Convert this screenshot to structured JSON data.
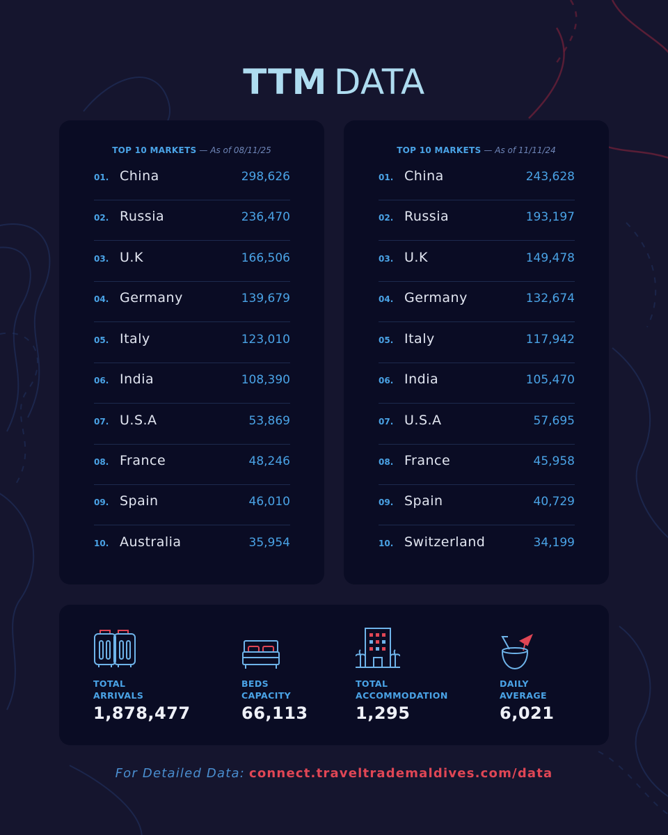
{
  "title": {
    "bold": "TTM",
    "light": "DATA"
  },
  "panels": [
    {
      "heading": "TOP 10 MARKETS",
      "subheading": "— As of 08/11/25",
      "rows": [
        {
          "rank": "01.",
          "country": "China",
          "value": "298,626"
        },
        {
          "rank": "02.",
          "country": "Russia",
          "value": "236,470"
        },
        {
          "rank": "03.",
          "country": "U.K",
          "value": "166,506"
        },
        {
          "rank": "04.",
          "country": "Germany",
          "value": "139,679"
        },
        {
          "rank": "05.",
          "country": "Italy",
          "value": "123,010"
        },
        {
          "rank": "06.",
          "country": "India",
          "value": "108,390"
        },
        {
          "rank": "07.",
          "country": "U.S.A",
          "value": "53,869"
        },
        {
          "rank": "08.",
          "country": "France",
          "value": "48,246"
        },
        {
          "rank": "09.",
          "country": "Spain",
          "value": "46,010"
        },
        {
          "rank": "10.",
          "country": "Australia",
          "value": "35,954"
        }
      ]
    },
    {
      "heading": "TOP 10 MARKETS",
      "subheading": "— As of 11/11/24",
      "rows": [
        {
          "rank": "01.",
          "country": "China",
          "value": "243,628"
        },
        {
          "rank": "02.",
          "country": "Russia",
          "value": "193,197"
        },
        {
          "rank": "03.",
          "country": "U.K",
          "value": "149,478"
        },
        {
          "rank": "04.",
          "country": "Germany",
          "value": "132,674"
        },
        {
          "rank": "05.",
          "country": "Italy",
          "value": "117,942"
        },
        {
          "rank": "06.",
          "country": "India",
          "value": "105,470"
        },
        {
          "rank": "07.",
          "country": "U.S.A",
          "value": "57,695"
        },
        {
          "rank": "08.",
          "country": "France",
          "value": "45,958"
        },
        {
          "rank": "09.",
          "country": "Spain",
          "value": "40,729"
        },
        {
          "rank": "10.",
          "country": "Switzerland",
          "value": "34,199"
        }
      ]
    }
  ],
  "stats": [
    {
      "icon": "luggage-icon",
      "label_line1": "TOTAL",
      "label_line2": "ARRIVALS",
      "value": "1,878,477"
    },
    {
      "icon": "bed-icon",
      "label_line1": "BEDS",
      "label_line2": "CAPACITY",
      "value": "66,113"
    },
    {
      "icon": "hotel-building-icon",
      "label_line1": "TOTAL",
      "label_line2": "ACCOMMODATION",
      "value": "1,295"
    },
    {
      "icon": "coconut-drink-icon",
      "label_line1": "DAILY",
      "label_line2": "AVERAGE",
      "value": "6,021"
    }
  ],
  "footer": {
    "label": "For Detailed Data:",
    "link": "connect.traveltrademaldives.com/data"
  },
  "colors": {
    "background": "#15152e",
    "panel": "#0a0c24",
    "accent_blue": "#4aa3e6",
    "accent_red": "#e04655",
    "title": "#aedcf0"
  }
}
